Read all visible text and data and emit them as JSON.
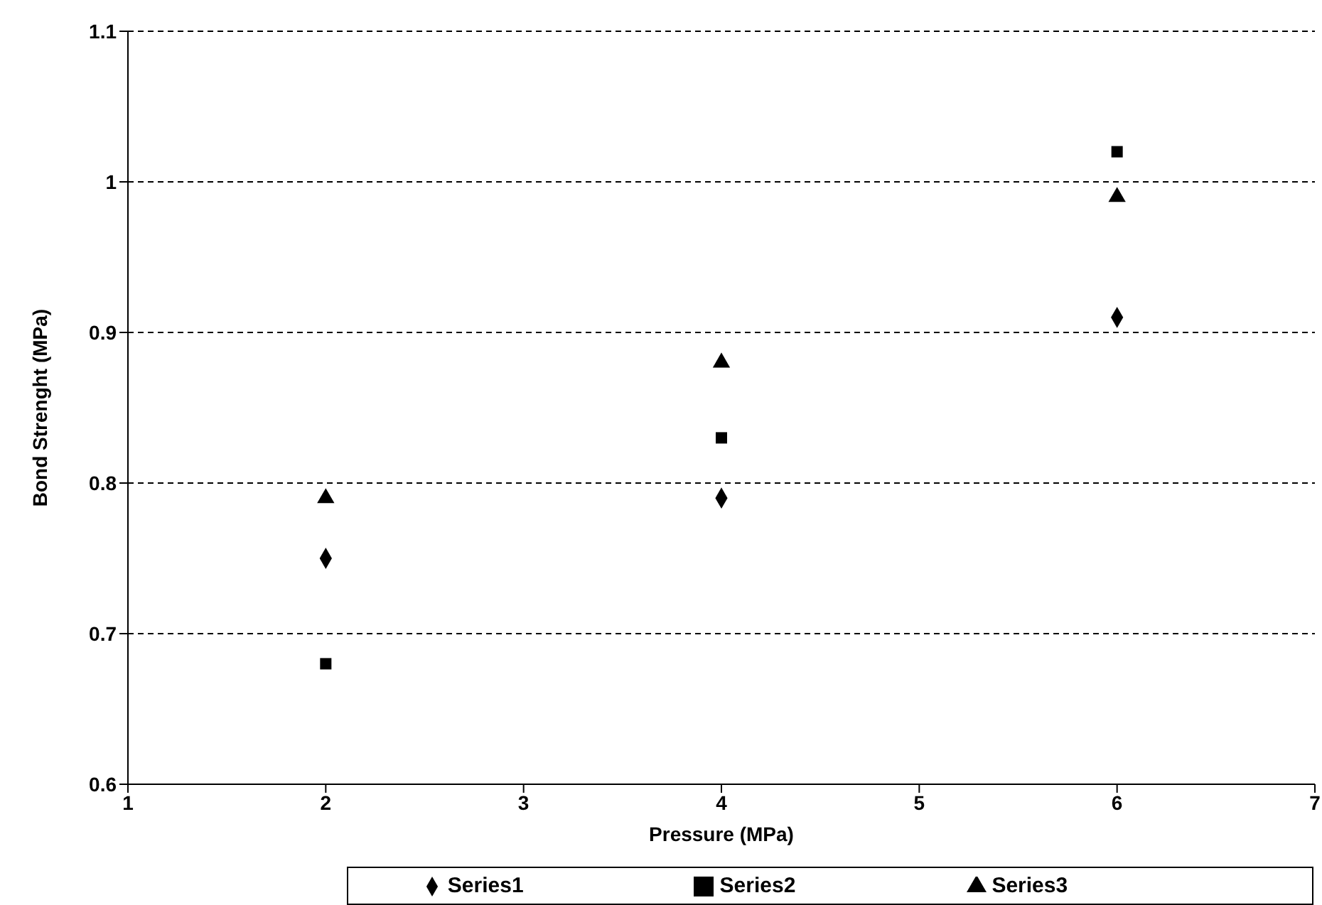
{
  "chart_data": {
    "type": "scatter",
    "xlabel": "Pressure (MPa)",
    "ylabel": "Bond Strenght (MPa)",
    "x": [
      2,
      4,
      6
    ],
    "series": [
      {
        "name": "Series1",
        "color": "#000000",
        "marker": "diamond",
        "values": [
          0.75,
          0.79,
          0.91
        ]
      },
      {
        "name": "Series2",
        "color": "#000000",
        "marker": "square",
        "values": [
          0.68,
          0.83,
          1.02
        ]
      },
      {
        "name": "Series3",
        "color": "#000000",
        "marker": "triangle",
        "values": [
          0.79,
          0.88,
          0.99
        ]
      }
    ],
    "xlim": [
      1,
      7
    ],
    "xticks": [
      1,
      2,
      3,
      4,
      5,
      6,
      7
    ],
    "ylim": [
      0.6,
      1.1
    ],
    "yticks": [
      0.6,
      0.7,
      0.8,
      0.9,
      1,
      1.1
    ],
    "grid": "y",
    "legend": "bottom"
  }
}
